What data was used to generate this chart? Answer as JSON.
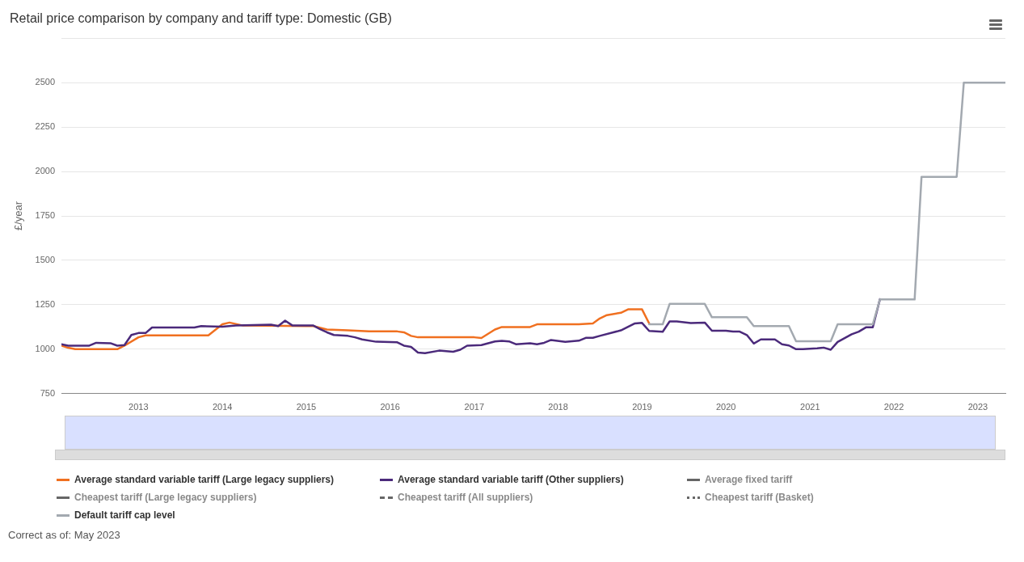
{
  "chart_data": {
    "type": "line",
    "title": "Retail price comparison by company and tariff type: Domestic (GB)",
    "ylabel": "£/year",
    "xlim": [
      "2012-02",
      "2023-05"
    ],
    "xticks": [
      "2013",
      "2014",
      "2015",
      "2016",
      "2017",
      "2018",
      "2019",
      "2020",
      "2021",
      "2022",
      "2023"
    ],
    "ylim": [
      750,
      2750
    ],
    "yticks": [
      750,
      1000,
      1250,
      1500,
      1750,
      2000,
      2250,
      2500,
      {
        "value": 2750,
        "label": null
      }
    ],
    "grid": "y",
    "legend": "bottom",
    "marker": "none",
    "line_style": "solid",
    "annotations": [
      "Correct as of: May 2023"
    ],
    "series": [
      {
        "name": "Average standard variable tariff (Large legacy suppliers)",
        "color": "#f07020",
        "x": [
          "2012-02",
          "2012-03",
          "2012-04",
          "2012-10",
          "2012-11",
          "2013-01",
          "2013-02",
          "2013-11",
          "2014-01",
          "2014-02",
          "2014-04",
          "2015-01",
          "2015-02",
          "2015-04",
          "2015-07",
          "2015-10",
          "2016-02",
          "2016-03",
          "2016-04",
          "2016-05",
          "2017-01",
          "2017-02",
          "2017-04",
          "2017-05",
          "2017-09",
          "2017-10",
          "2018-04",
          "2018-06",
          "2018-07",
          "2018-08",
          "2018-10",
          "2018-11",
          "2019-01",
          "2019-02"
        ],
        "values": [
          1020,
          1008,
          1000,
          1000,
          1020,
          1067,
          1078,
          1078,
          1140,
          1150,
          1133,
          1130,
          1130,
          1111,
          1106,
          1100,
          1100,
          1095,
          1075,
          1067,
          1067,
          1063,
          1111,
          1125,
          1125,
          1140,
          1140,
          1145,
          1173,
          1192,
          1205,
          1224,
          1224,
          1145
        ]
      },
      {
        "name": "Average standard variable tariff (Other suppliers)",
        "color": "#4b2a7b",
        "x": [
          "2012-02",
          "2012-03",
          "2012-06",
          "2012-07",
          "2012-09",
          "2012-10",
          "2012-11",
          "2012-12",
          "2013-01",
          "2013-02",
          "2013-03",
          "2013-09",
          "2013-10",
          "2014-01",
          "2014-03",
          "2014-08",
          "2014-09",
          "2014-10",
          "2014-11",
          "2015-02",
          "2015-03",
          "2015-04",
          "2015-05",
          "2015-07",
          "2015-08",
          "2015-09",
          "2015-11",
          "2016-02",
          "2016-03",
          "2016-04",
          "2016-05",
          "2016-06",
          "2016-08",
          "2016-10",
          "2016-11",
          "2016-12",
          "2017-02",
          "2017-04",
          "2017-05",
          "2017-06",
          "2017-07",
          "2017-09",
          "2017-10",
          "2017-11",
          "2017-12",
          "2018-02",
          "2018-04",
          "2018-05",
          "2018-06",
          "2018-07",
          "2018-10",
          "2018-12",
          "2019-01",
          "2019-02",
          "2019-04",
          "2019-05",
          "2019-06",
          "2019-08",
          "2019-10",
          "2019-11",
          "2020-01",
          "2020-02",
          "2020-03",
          "2020-04",
          "2020-05",
          "2020-06",
          "2020-08",
          "2020-09",
          "2020-10",
          "2020-11",
          "2020-12",
          "2021-02",
          "2021-03",
          "2021-04",
          "2021-05",
          "2021-07",
          "2021-08",
          "2021-09",
          "2021-10",
          "2021-11"
        ],
        "values": [
          1028,
          1020,
          1020,
          1036,
          1034,
          1020,
          1023,
          1080,
          1091,
          1091,
          1122,
          1122,
          1130,
          1127,
          1133,
          1138,
          1130,
          1161,
          1134,
          1133,
          1114,
          1095,
          1080,
          1075,
          1067,
          1055,
          1042,
          1039,
          1020,
          1013,
          981,
          978,
          992,
          986,
          997,
          1020,
          1023,
          1044,
          1047,
          1044,
          1028,
          1033,
          1028,
          1036,
          1052,
          1041,
          1048,
          1064,
          1064,
          1075,
          1106,
          1145,
          1148,
          1103,
          1098,
          1156,
          1156,
          1147,
          1150,
          1104,
          1104,
          1099,
          1099,
          1080,
          1032,
          1055,
          1055,
          1028,
          1021,
          1000,
          1000,
          1005,
          1009,
          997,
          1041,
          1084,
          1099,
          1123,
          1123,
          1281
        ]
      },
      {
        "name": "Average fixed tariff",
        "color": "#666666"
      },
      {
        "name": "Cheapest tariff (Large legacy suppliers)",
        "color": "#666666"
      },
      {
        "name": "Cheapest tariff (All suppliers)",
        "color": "#666666",
        "line_style": "dashed"
      },
      {
        "name": "Cheapest tariff (Basket)",
        "color": "#666666",
        "line_style": "dotted"
      },
      {
        "name": "Default tariff cap level",
        "color": "#a3a9b0",
        "x": [
          "2019-02",
          "2019-04",
          "2019-05",
          "2019-10",
          "2019-11",
          "2020-04",
          "2020-05",
          "2020-10",
          "2020-11",
          "2021-04",
          "2021-05",
          "2021-10",
          "2021-11",
          "2022-04",
          "2022-05",
          "2022-10",
          "2022-11",
          "2023-05"
        ],
        "values": [
          1140,
          1140,
          1255,
          1255,
          1180,
          1180,
          1130,
          1130,
          1045,
          1045,
          1140,
          1140,
          1280,
          1280,
          1970,
          1970,
          2500,
          2500
        ]
      }
    ]
  }
}
